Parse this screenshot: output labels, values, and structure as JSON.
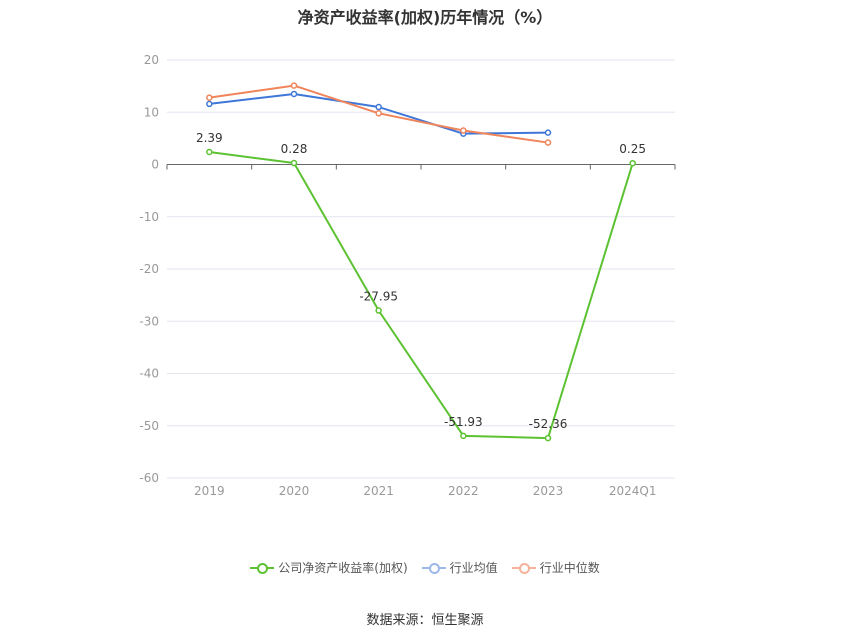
{
  "title": "净资产收益率(加权)历年情况（%）",
  "source": "数据来源：恒生聚源",
  "chart_data": {
    "type": "line",
    "categories": [
      "2019",
      "2020",
      "2021",
      "2022",
      "2023",
      "2024Q1"
    ],
    "ylim": [
      -60,
      20
    ],
    "yticks": [
      20,
      10,
      0,
      -10,
      -20,
      -30,
      -40,
      -50,
      -60
    ],
    "grid": true,
    "legend_position": "bottom",
    "series": [
      {
        "name": "公司净资产收益率(加权)",
        "color": "#5cc232",
        "values": [
          2.39,
          0.28,
          -27.95,
          -51.93,
          -52.36,
          0.25
        ],
        "labels": [
          "2.39",
          "0.28",
          "-27.95",
          "-51.93",
          "-52.36",
          "0.25"
        ]
      },
      {
        "name": "行业均值",
        "color": "#3f77d8",
        "values": [
          11.6,
          13.5,
          11.0,
          5.9,
          6.1,
          null
        ]
      },
      {
        "name": "行业中位数",
        "color": "#f0845a",
        "values": [
          12.8,
          15.1,
          9.8,
          6.5,
          4.2,
          null
        ]
      }
    ]
  }
}
